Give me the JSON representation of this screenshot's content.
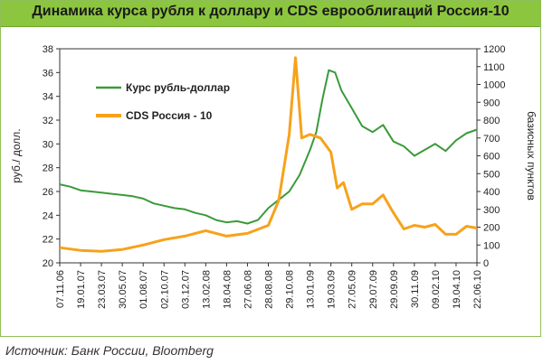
{
  "title": "Динамика курса рубля к доллару и CDS еврооблигаций Россия-10",
  "source": "Источник: Банк России, Bloomberg",
  "colors": {
    "header": "#8cc63f",
    "rub": "#3a9a3a",
    "cds": "#f7a21b"
  },
  "chart_data": {
    "type": "line",
    "ylabel_left": "руб./ долл.",
    "ylabel_right": "базисных пунктов",
    "ylim_left": [
      20,
      38
    ],
    "ylim_right": [
      0,
      1200
    ],
    "yticks_left": [
      "20",
      "22",
      "24",
      "26",
      "28",
      "30",
      "32",
      "34",
      "36",
      "38"
    ],
    "yticks_right": [
      "0",
      "100",
      "200",
      "300",
      "400",
      "500",
      "600",
      "700",
      "800",
      "900",
      "1000",
      "1100",
      "1200"
    ],
    "x_ticks": [
      "07.11.06",
      "19.01.07",
      "23.03.07",
      "30.05.07",
      "01.08.07",
      "02.10.07",
      "03.12.07",
      "13.02.08",
      "18.04.08",
      "27.06.08",
      "28.08.08",
      "29.10.08",
      "13.01.09",
      "19.03.09",
      "27.05.09",
      "29.07.09",
      "29.09.09",
      "30.11.09",
      "09.02.10",
      "19.04.10",
      "22.06.10"
    ],
    "legend_position": "top-left",
    "series": [
      {
        "name": "Курс рубль-доллар",
        "axis": "left",
        "points": [
          [
            0,
            26.6
          ],
          [
            0.5,
            26.4
          ],
          [
            1,
            26.1
          ],
          [
            1.5,
            26.0
          ],
          [
            2,
            25.9
          ],
          [
            2.5,
            25.8
          ],
          [
            3,
            25.7
          ],
          [
            3.5,
            25.6
          ],
          [
            4,
            25.4
          ],
          [
            4.5,
            25.0
          ],
          [
            5,
            24.8
          ],
          [
            5.5,
            24.6
          ],
          [
            6,
            24.5
          ],
          [
            6.5,
            24.2
          ],
          [
            7,
            24.0
          ],
          [
            7.5,
            23.6
          ],
          [
            8,
            23.4
          ],
          [
            8.5,
            23.5
          ],
          [
            9,
            23.3
          ],
          [
            9.5,
            23.6
          ],
          [
            10,
            24.6
          ],
          [
            10.5,
            25.3
          ],
          [
            11,
            26.0
          ],
          [
            11.5,
            27.4
          ],
          [
            12,
            29.5
          ],
          [
            12.3,
            31.0
          ],
          [
            12.6,
            33.8
          ],
          [
            12.9,
            36.2
          ],
          [
            13.2,
            36.0
          ],
          [
            13.5,
            34.5
          ],
          [
            14,
            33.0
          ],
          [
            14.5,
            31.5
          ],
          [
            15,
            31.0
          ],
          [
            15.5,
            31.6
          ],
          [
            16,
            30.2
          ],
          [
            16.5,
            29.8
          ],
          [
            17,
            29.0
          ],
          [
            17.5,
            29.5
          ],
          [
            18,
            30.0
          ],
          [
            18.5,
            29.4
          ],
          [
            19,
            30.3
          ],
          [
            19.5,
            30.9
          ],
          [
            20,
            31.2
          ]
        ]
      },
      {
        "name": "CDS Россия - 10",
        "axis": "right",
        "points": [
          [
            0,
            85
          ],
          [
            1,
            70
          ],
          [
            2,
            65
          ],
          [
            3,
            75
          ],
          [
            4,
            100
          ],
          [
            5,
            130
          ],
          [
            6,
            150
          ],
          [
            7,
            180
          ],
          [
            8,
            150
          ],
          [
            9,
            165
          ],
          [
            10,
            210
          ],
          [
            10.5,
            350
          ],
          [
            11,
            720
          ],
          [
            11.3,
            1150
          ],
          [
            11.6,
            700
          ],
          [
            12,
            720
          ],
          [
            12.5,
            700
          ],
          [
            13,
            620
          ],
          [
            13.3,
            420
          ],
          [
            13.6,
            450
          ],
          [
            14,
            300
          ],
          [
            14.5,
            330
          ],
          [
            15,
            330
          ],
          [
            15.5,
            380
          ],
          [
            16,
            280
          ],
          [
            16.5,
            190
          ],
          [
            17,
            210
          ],
          [
            17.5,
            200
          ],
          [
            18,
            215
          ],
          [
            18.5,
            160
          ],
          [
            19,
            160
          ],
          [
            19.5,
            205
          ],
          [
            20,
            195
          ]
        ]
      }
    ]
  }
}
